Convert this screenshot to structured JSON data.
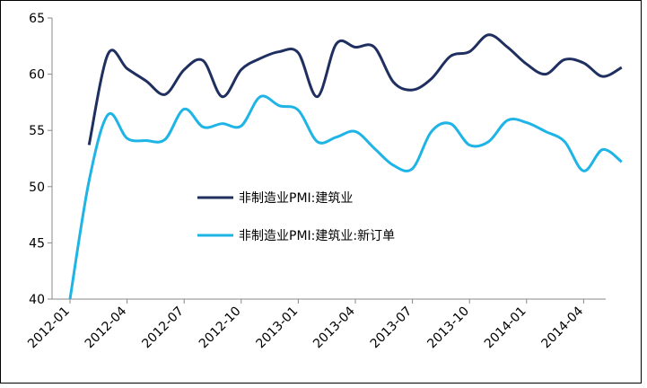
{
  "chart_data": {
    "type": "line",
    "categories": [
      "2012-01",
      null,
      null,
      "2012-04",
      null,
      null,
      "2012-07",
      null,
      null,
      "2012-10",
      null,
      null,
      "2013-01",
      null,
      null,
      "2013-04",
      null,
      null,
      "2013-07",
      null,
      null,
      "2013-10",
      null,
      null,
      "2014-01",
      null,
      null,
      "2014-04",
      null,
      null
    ],
    "series": [
      {
        "name": "非制造业PMI:建筑业",
        "color": "#1f2f5f",
        "values": [
          null,
          53.7,
          61.8,
          60.5,
          59.4,
          58.2,
          60.4,
          61.2,
          58.0,
          60.4,
          61.4,
          62.0,
          61.9,
          58.0,
          62.7,
          62.4,
          62.4,
          59.3,
          58.6,
          59.6,
          61.6,
          62.0,
          63.5,
          62.4,
          60.9,
          60.0,
          61.3,
          61.0,
          59.8,
          60.6
        ]
      },
      {
        "name": "非制造业PMI:建筑业:新订单",
        "color": "#1fb4e6",
        "values": [
          40,
          50.5,
          56.4,
          54.3,
          54.1,
          54.2,
          56.9,
          55.3,
          55.6,
          55.4,
          58.0,
          57.2,
          56.8,
          54.0,
          54.4,
          54.9,
          53.4,
          51.9,
          51.6,
          54.9,
          55.6,
          53.7,
          54.0,
          55.9,
          55.7,
          54.9,
          54.0,
          51.4,
          53.3,
          52.2
        ]
      }
    ],
    "ylim": [
      40,
      65
    ],
    "yticks": [
      40,
      45,
      50,
      55,
      60,
      65
    ]
  }
}
